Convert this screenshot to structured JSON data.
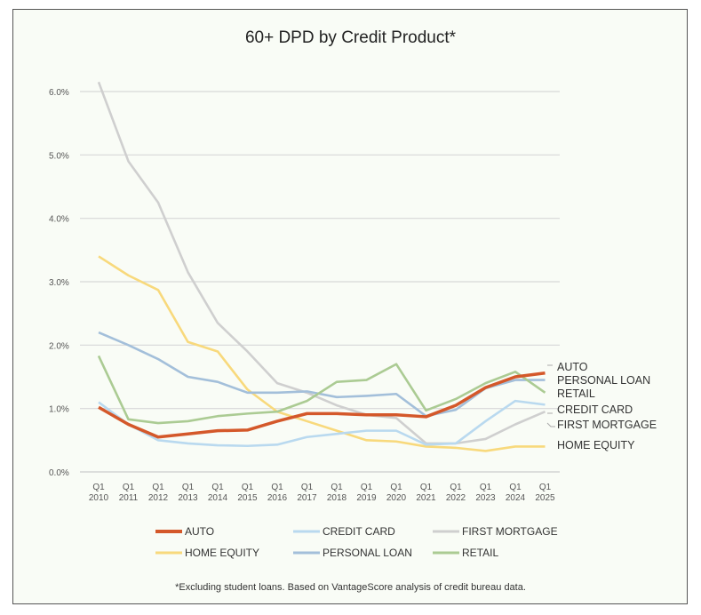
{
  "chart_data": {
    "type": "line",
    "title": "60+ DPD by Credit Product*",
    "footnote": "*Excluding student loans. Based on VantageScore analysis of credit bureau data.",
    "x": [
      "Q1 2010",
      "Q1 2011",
      "Q1 2012",
      "Q1 2013",
      "Q1 2014",
      "Q1 2015",
      "Q1 2016",
      "Q1 2017",
      "Q1 2018",
      "Q1 2019",
      "Q1 2020",
      "Q1 2021",
      "Q1 2022",
      "Q1 2023",
      "Q1 2024",
      "Q1 2025"
    ],
    "x_ticks": [
      [
        "Q1",
        "2010"
      ],
      [
        "Q1",
        "2011"
      ],
      [
        "Q1",
        "2012"
      ],
      [
        "Q1",
        "2013"
      ],
      [
        "Q1",
        "2014"
      ],
      [
        "Q1",
        "2015"
      ],
      [
        "Q1",
        "2016"
      ],
      [
        "Q1",
        "2017"
      ],
      [
        "Q1",
        "2018"
      ],
      [
        "Q1",
        "2019"
      ],
      [
        "Q1",
        "2020"
      ],
      [
        "Q1",
        "2021"
      ],
      [
        "Q1",
        "2022"
      ],
      [
        "Q1",
        "2023"
      ],
      [
        "Q1",
        "2024"
      ],
      [
        "Q1",
        "2025"
      ]
    ],
    "y_ticks": [
      "0.0%",
      "1.0%",
      "2.0%",
      "3.0%",
      "4.0%",
      "5.0%",
      "6.0%"
    ],
    "ylim": [
      0,
      6
    ],
    "y_unit": "%",
    "grid": true,
    "legend": "bottom",
    "series": [
      {
        "name": "AUTO",
        "color": "#d4582a",
        "values": [
          1.02,
          0.75,
          0.55,
          0.6,
          0.65,
          0.66,
          0.8,
          0.92,
          0.92,
          0.9,
          0.9,
          0.87,
          1.05,
          1.33,
          1.5,
          1.56
        ]
      },
      {
        "name": "CREDIT CARD",
        "color": "#b9d9ef",
        "values": [
          1.1,
          0.75,
          0.5,
          0.45,
          0.42,
          0.41,
          0.43,
          0.55,
          0.6,
          0.65,
          0.65,
          0.43,
          0.45,
          0.8,
          1.12,
          1.06
        ]
      },
      {
        "name": "FIRST MORTGAGE",
        "color": "#cfcfcf",
        "values": [
          6.15,
          4.9,
          4.25,
          3.15,
          2.35,
          1.9,
          1.4,
          1.25,
          1.05,
          0.9,
          0.85,
          0.45,
          0.45,
          0.52,
          0.75,
          0.95
        ]
      },
      {
        "name": "HOME EQUITY",
        "color": "#f8d97c",
        "values": [
          3.4,
          3.1,
          2.87,
          2.05,
          1.9,
          1.3,
          0.95,
          0.8,
          0.65,
          0.5,
          0.48,
          0.4,
          0.38,
          0.33,
          0.4,
          0.4
        ]
      },
      {
        "name": "PERSONAL LOAN",
        "color": "#a3bfda",
        "values": [
          2.2,
          2.0,
          1.78,
          1.5,
          1.42,
          1.25,
          1.25,
          1.27,
          1.18,
          1.2,
          1.23,
          0.88,
          0.98,
          1.32,
          1.45,
          1.45
        ]
      },
      {
        "name": "RETAIL",
        "color": "#abcb93",
        "values": [
          1.83,
          0.83,
          0.77,
          0.8,
          0.88,
          0.92,
          0.95,
          1.12,
          1.42,
          1.45,
          1.7,
          0.97,
          1.15,
          1.4,
          1.58,
          1.25
        ]
      }
    ],
    "end_labels": [
      "AUTO",
      "PERSONAL LOAN",
      "RETAIL",
      "CREDIT CARD",
      "FIRST MORTGAGE",
      "HOME EQUITY"
    ]
  }
}
